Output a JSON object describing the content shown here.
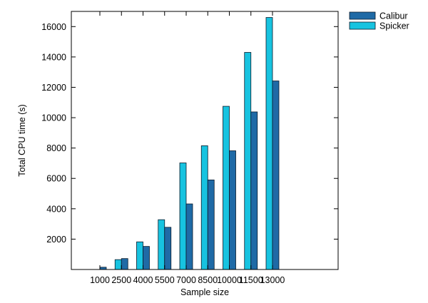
{
  "chart_data": {
    "type": "bar",
    "title": "",
    "xlabel": "Sample size",
    "ylabel": "Total CPU time (s)",
    "categories": [
      "1000",
      "2500",
      "4000",
      "5500",
      "7000",
      "8500",
      "10000",
      "11500",
      "13000"
    ],
    "ylim": [
      0,
      17000
    ],
    "yticks": [
      2000,
      4000,
      6000,
      8000,
      10000,
      12000,
      14000,
      16000
    ],
    "grid": false,
    "legend_position": "top-right-outside",
    "series": [
      {
        "name": "Spicker",
        "color": "#17c3e0",
        "values": [
          0,
          650,
          1820,
          3280,
          7020,
          8150,
          10750,
          14300,
          16600
        ]
      },
      {
        "name": "Calibur",
        "color": "#1f6aa6",
        "values": [
          150,
          720,
          1520,
          2780,
          4320,
          5900,
          7820,
          10380,
          12420
        ]
      }
    ]
  }
}
